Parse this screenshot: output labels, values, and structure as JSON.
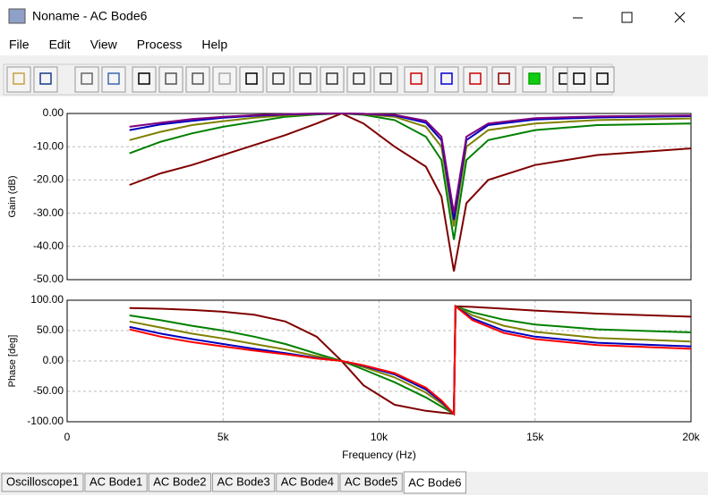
{
  "window": {
    "title": "Noname - AC Bode6"
  },
  "menu": [
    "File",
    "Edit",
    "View",
    "Process",
    "Help"
  ],
  "tabs": [
    "Oscilloscope1",
    "AC Bode1",
    "AC Bode2",
    "AC Bode3",
    "AC Bode4",
    "AC Bode5",
    "AC Bode6"
  ],
  "chart_data": [
    {
      "type": "line",
      "ylabel": "Gain (dB)",
      "x": [
        2000,
        3000,
        4000,
        5000,
        6000,
        7000,
        8000,
        8800,
        9500,
        10500,
        11500,
        12000,
        12400,
        12800,
        13500,
        15000,
        17000,
        20000
      ],
      "xlim": [
        0,
        20000
      ],
      "ylim": [
        -50,
        0
      ],
      "yticks": [
        {
          "value": 0,
          "label": "0.00"
        },
        {
          "value": -10,
          "label": "-10.00"
        },
        {
          "value": -20,
          "label": "-20.00"
        },
        {
          "value": -30,
          "label": "-30.00"
        },
        {
          "value": -40,
          "label": "-40.00"
        },
        {
          "value": -50,
          "label": "-50.00"
        }
      ],
      "grid": true,
      "series": [
        {
          "color": "#800000",
          "values": [
            -21.5,
            -18,
            -15.5,
            -12.5,
            -9.5,
            -6.5,
            -3,
            0,
            -3,
            -10,
            -16,
            -25,
            -47.5,
            -27,
            -20,
            -15.5,
            -12.5,
            -10.5
          ]
        },
        {
          "color": "#008000",
          "values": [
            -12,
            -8.5,
            -6,
            -4,
            -2.5,
            -1,
            -0.3,
            0,
            -0.4,
            -2,
            -7,
            -14,
            -38,
            -14,
            -8,
            -5,
            -3.5,
            -3
          ]
        },
        {
          "color": "#808000",
          "values": [
            -8,
            -5.5,
            -3.5,
            -2.3,
            -1.3,
            -0.6,
            -0.2,
            0,
            -0.2,
            -1,
            -4,
            -10,
            -34,
            -10,
            -5,
            -3,
            -2,
            -1.5
          ]
        },
        {
          "color": "#0000c0",
          "values": [
            -5,
            -3.3,
            -2.2,
            -1.3,
            -0.7,
            -0.3,
            -0.1,
            0,
            -0.1,
            -0.6,
            -2.8,
            -8,
            -32,
            -8,
            -3.5,
            -1.8,
            -1.2,
            -0.8
          ]
        },
        {
          "color": "#800080",
          "values": [
            -4,
            -2.8,
            -1.7,
            -1,
            -0.5,
            -0.2,
            0,
            0,
            -0.1,
            -0.4,
            -2.2,
            -7,
            -30,
            -7,
            -3,
            -1.4,
            -0.9,
            -0.6
          ]
        }
      ]
    },
    {
      "type": "line",
      "ylabel": "Phase [deg]",
      "xlabel": "Frequency (Hz)",
      "x": [
        2000,
        3000,
        4000,
        5000,
        6000,
        7000,
        8000,
        8800,
        9500,
        10500,
        11500,
        12000,
        12400,
        12450,
        13000,
        14000,
        15000,
        17000,
        20000
      ],
      "xlim": [
        0,
        20000
      ],
      "ylim": [
        -100,
        100
      ],
      "xticks": [
        0,
        {
          "value": 5000,
          "label": "5k"
        },
        {
          "value": 10000,
          "label": "10k"
        },
        {
          "value": 15000,
          "label": "15k"
        },
        {
          "value": 20000,
          "label": "20k"
        }
      ],
      "yticks": [
        {
          "value": 100,
          "label": "100.00"
        },
        {
          "value": 50,
          "label": "50.00"
        },
        {
          "value": 0,
          "label": "0.00"
        },
        {
          "value": -50,
          "label": "-50.00"
        },
        {
          "value": -100,
          "label": "-100.00"
        }
      ],
      "grid": true,
      "series": [
        {
          "color": "#800000",
          "values": [
            87,
            86,
            84,
            81,
            76,
            65,
            40,
            0,
            -40,
            -72,
            -82,
            -85,
            -87,
            90,
            89,
            86,
            83,
            78,
            73
          ]
        },
        {
          "color": "#008000",
          "values": [
            75,
            67,
            58,
            50,
            40,
            28,
            12,
            0,
            -14,
            -35,
            -60,
            -75,
            -87,
            90,
            80,
            68,
            60,
            52,
            47
          ]
        },
        {
          "color": "#808000",
          "values": [
            65,
            55,
            45,
            37,
            28,
            19,
            8,
            0,
            -10,
            -27,
            -52,
            -70,
            -87,
            90,
            75,
            58,
            48,
            38,
            32
          ]
        },
        {
          "color": "#0000c0",
          "values": [
            56,
            45,
            36,
            28,
            20,
            13,
            5,
            0,
            -8,
            -22,
            -47,
            -67,
            -87,
            90,
            70,
            50,
            40,
            30,
            24
          ]
        },
        {
          "color": "#ff0000",
          "values": [
            52,
            40,
            31,
            24,
            17,
            11,
            4,
            0,
            -7,
            -20,
            -44,
            -65,
            -87,
            90,
            67,
            46,
            36,
            26,
            20
          ]
        }
      ]
    }
  ]
}
